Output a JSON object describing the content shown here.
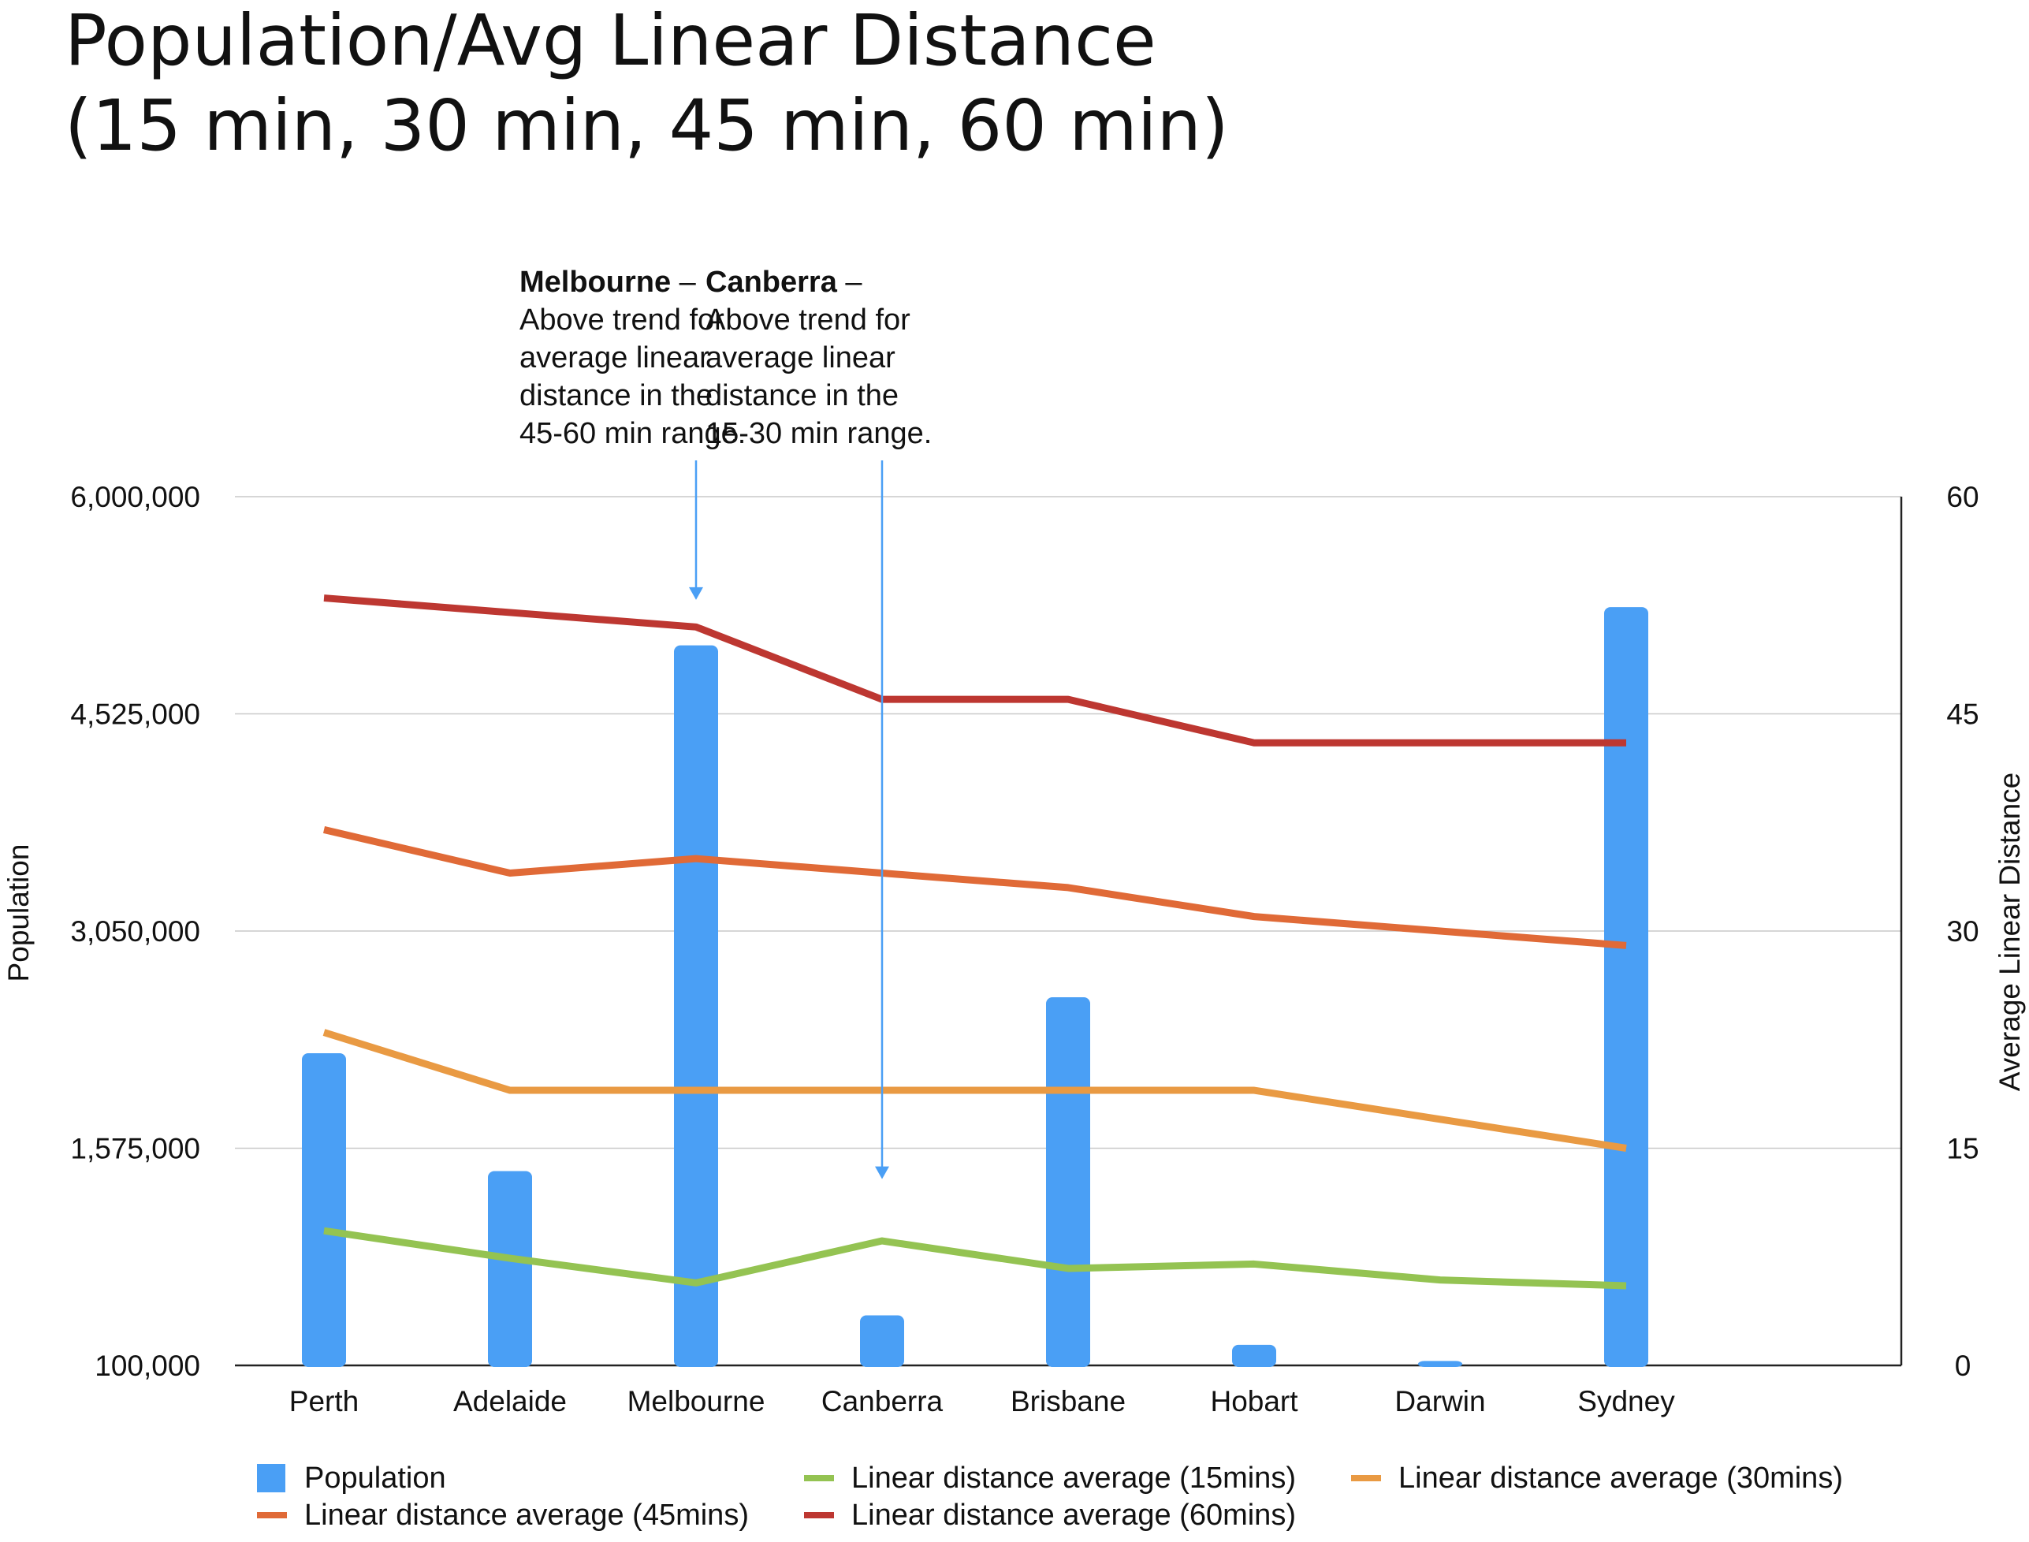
{
  "chart_data": {
    "type": "bar",
    "title": "Population/Avg Linear Distance",
    "subtitle": "(15 min, 30 min, 45 min, 60 min)",
    "categories": [
      "Perth",
      "Adelaide",
      "Melbourne",
      "Canberra",
      "Brisbane",
      "Hobart",
      "Darwin",
      "Sydney"
    ],
    "y_left": {
      "label": "Population",
      "ylim": [
        100000,
        6000000
      ],
      "ticks": [
        100000,
        1575000,
        3050000,
        4525000,
        6000000
      ],
      "tick_labels": [
        "100,000",
        "1,575,000",
        "3,050,000",
        "4,525,000",
        "6,000,000"
      ]
    },
    "y_right": {
      "label": "Average Linear Distance",
      "ylim": [
        0,
        60
      ],
      "ticks": [
        0,
        15,
        30,
        45,
        60
      ],
      "tick_labels": [
        "0",
        "15",
        "30",
        "45",
        "60"
      ]
    },
    "grid": true,
    "legend_position": "bottom",
    "series": [
      {
        "name": "Population",
        "type": "bar",
        "axis": "left",
        "color": "#4a9ff5",
        "values": [
          2220000,
          1420000,
          4990000,
          440000,
          2600000,
          240000,
          130000,
          5250000
        ]
      },
      {
        "name": "Linear distance average (15mins)",
        "type": "line",
        "axis": "right",
        "color": "#94c352",
        "values": [
          9.3,
          7.4,
          5.7,
          8.6,
          6.7,
          7.0,
          5.9,
          5.5
        ]
      },
      {
        "name": "Linear distance average (30mins)",
        "type": "line",
        "axis": "right",
        "color": "#e99a43",
        "values": [
          23.0,
          19.0,
          19.0,
          19.0,
          19.0,
          19.0,
          17.0,
          15.0
        ]
      },
      {
        "name": "Linear distance average (45mins)",
        "type": "line",
        "axis": "right",
        "color": "#e06a37",
        "values": [
          37.0,
          34.0,
          35.0,
          34.0,
          33.0,
          31.0,
          30.0,
          29.0
        ]
      },
      {
        "name": "Linear distance average (60mins)",
        "type": "line",
        "axis": "right",
        "color": "#bd3731",
        "values": [
          53.0,
          52.0,
          51.0,
          46.0,
          46.0,
          43.0,
          43.0,
          43.0
        ]
      }
    ],
    "annotations": [
      {
        "category": "Melbourne",
        "target_value": 52,
        "axis": "right",
        "bold": "Melbourne",
        "lines": [
          " –",
          "Above trend for",
          "average linear",
          "distance in the",
          "45-60 min range."
        ]
      },
      {
        "category": "Canberra",
        "target_value": 12,
        "axis": "right",
        "bold": "Canberra",
        "lines": [
          " –",
          "Above trend for",
          "average linear",
          "distance in the",
          "15-30 min range."
        ]
      }
    ],
    "legend": [
      [
        "Population",
        "Linear distance average (15mins)",
        "Linear distance average (30mins)"
      ],
      [
        "Linear distance average (45mins)",
        "Linear distance average (60mins)"
      ]
    ]
  }
}
